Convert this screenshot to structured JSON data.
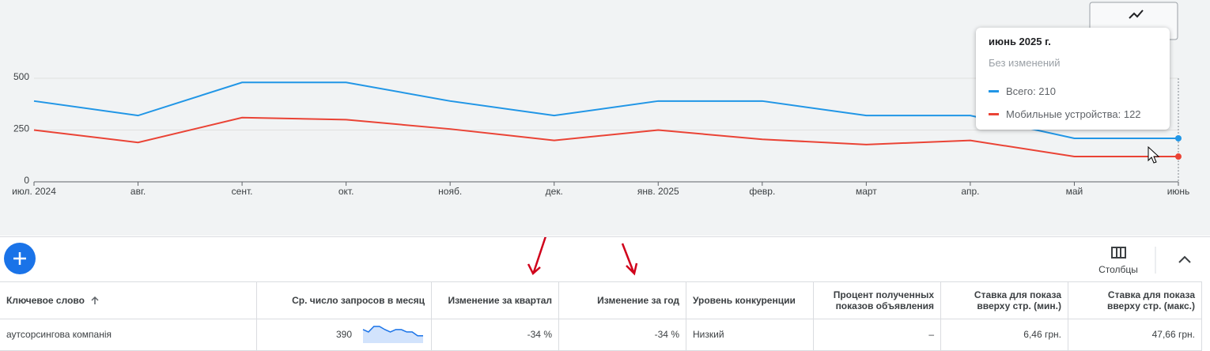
{
  "chart_data": {
    "type": "line",
    "categories": [
      "июл. 2024",
      "авг.",
      "сент.",
      "окт.",
      "нояб.",
      "дек.",
      "янв. 2025",
      "февр.",
      "март",
      "апр.",
      "май",
      "июнь"
    ],
    "series": [
      {
        "color": "#2196e6",
        "values": [
          390,
          320,
          480,
          480,
          390,
          320,
          390,
          390,
          320,
          320,
          210,
          210
        ]
      },
      {
        "color": "#ea4335",
        "values": [
          250,
          190,
          310,
          300,
          255,
          200,
          250,
          205,
          180,
          200,
          122,
          122
        ]
      }
    ],
    "ylim": [
      0,
      500
    ],
    "yticks": [
      0,
      250,
      500
    ],
    "grid": true
  },
  "tooltip": {
    "title": "июнь 2025 г.",
    "subtitle": "Без изменений",
    "items": [
      "Всего: 210",
      "Мобильные устройства: 122"
    ]
  },
  "toolbar": {
    "columns_label": "Столбцы"
  },
  "table": {
    "columns": [
      "Ключевое слово",
      "Ср. число запросов в месяц",
      "Изменение за квартал",
      "Изменение за год",
      "Уровень конкуренции",
      "Процент полученных показов объявления",
      "Ставка для показа вверху стр. (мин.)",
      "Ставка для показа вверху стр. (макс.)"
    ],
    "rows": [
      [
        "аутсорсингова компанія",
        "390",
        "-34 %",
        "-34 %",
        "Низкий",
        "–",
        "6,46 грн.",
        "47,66 грн."
      ]
    ]
  }
}
